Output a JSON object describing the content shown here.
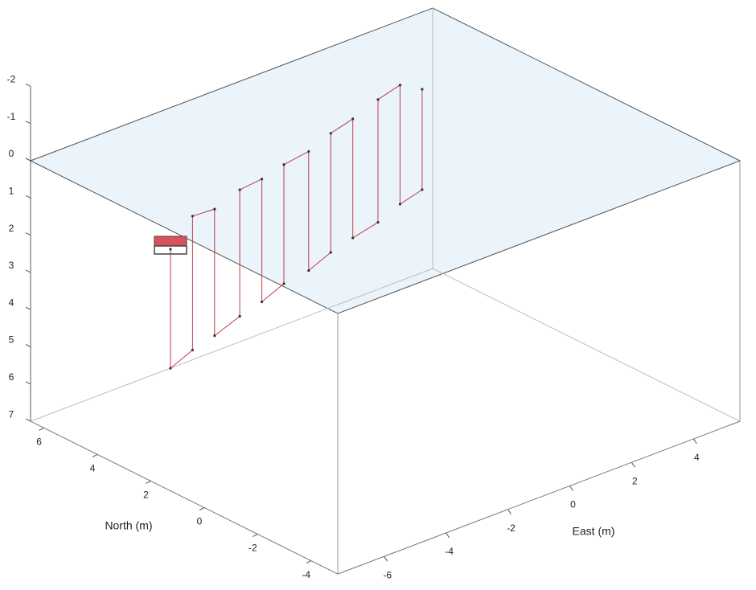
{
  "chart_data": {
    "type": "line3d",
    "xlabel": "East (m)",
    "ylabel": "North (m)",
    "xlim": [
      -7.5,
      5.5
    ],
    "ylim": [
      -5,
      6.5
    ],
    "zlim": [
      -2,
      7
    ],
    "zreverse": true,
    "xticks": [
      -6,
      -4,
      -2,
      0,
      2,
      4
    ],
    "yticks": [
      -4,
      -2,
      0,
      2,
      4,
      6
    ],
    "zticks": [
      -2,
      -1,
      0,
      1,
      2,
      3,
      4,
      5,
      6,
      7
    ],
    "series": [
      {
        "color": "#c23a4c",
        "x": [
          -6.0,
          -6.0,
          -5.2,
          -5.2,
          -4.4,
          -4.4,
          -3.5,
          -3.5,
          -2.7,
          -2.7,
          -1.9,
          -1.9,
          -1.1,
          -1.1,
          -0.3,
          -0.3,
          0.5,
          0.5,
          1.4,
          1.4,
          2.2,
          2.2,
          3.0,
          3.0
        ],
        "y": [
          3.0,
          3.0,
          3.1,
          3.1,
          3.2,
          3.2,
          3.3,
          3.3,
          3.4,
          3.4,
          3.5,
          3.5,
          3.5,
          3.5,
          3.6,
          3.6,
          3.7,
          3.7,
          3.8,
          3.8,
          3.9,
          3.9,
          4.0,
          4.0
        ],
        "z": [
          1.6,
          4.8,
          4.6,
          1.0,
          1.1,
          4.5,
          4.3,
          0.9,
          0.9,
          4.2,
          4.0,
          0.8,
          0.7,
          3.9,
          3.7,
          0.5,
          0.4,
          3.6,
          3.5,
          0.2,
          0.1,
          3.3,
          3.2,
          0.5
        ]
      }
    ]
  }
}
